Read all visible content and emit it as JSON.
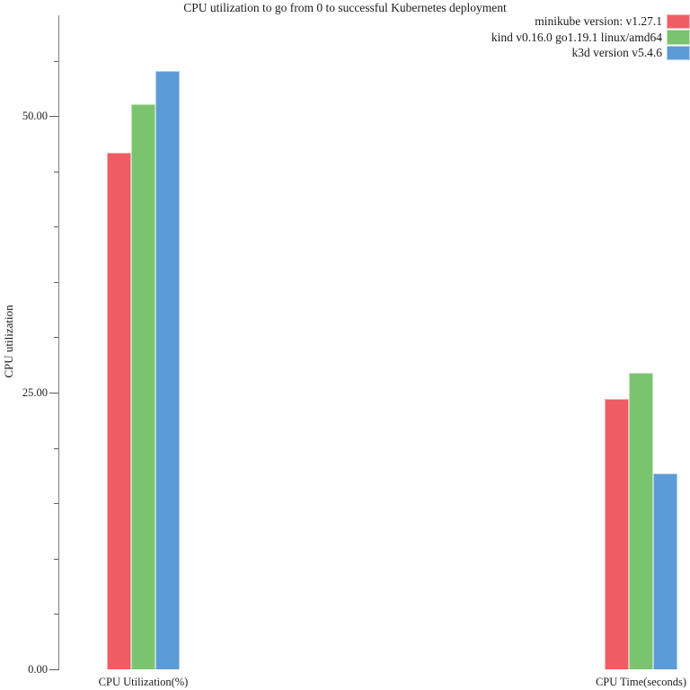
{
  "chart_data": {
    "type": "bar",
    "title": "CPU utilization to go from 0 to successful Kubernetes deployment",
    "xlabel": "",
    "ylabel": "CPU utilization",
    "categories": [
      "CPU Utilization(%)",
      "CPU Time(seconds)"
    ],
    "series": [
      {
        "name": "minikube version: v1.27.1",
        "color": "#F05C64",
        "border_color": "#F7AFB3",
        "values": [
          46.7,
          24.4
        ]
      },
      {
        "name": "kind v0.16.0 go1.19.1 linux/amd64",
        "color": "#7BC46F",
        "border_color": "#BEE3B6",
        "values": [
          51.1,
          26.8
        ]
      },
      {
        "name": "k3d version v5.4.6",
        "color": "#5B9BD7",
        "border_color": "#AECFEC",
        "values": [
          54.1,
          17.7
        ]
      }
    ],
    "ylim": [
      0,
      59.1
    ],
    "y_tick_step": 5,
    "y_tick_labels": [
      {
        "value": 0,
        "label": "0.00"
      },
      {
        "value": 25,
        "label": "25.00"
      },
      {
        "value": 50,
        "label": "50.00"
      }
    ],
    "legend_position": "top-right",
    "grid": false
  }
}
